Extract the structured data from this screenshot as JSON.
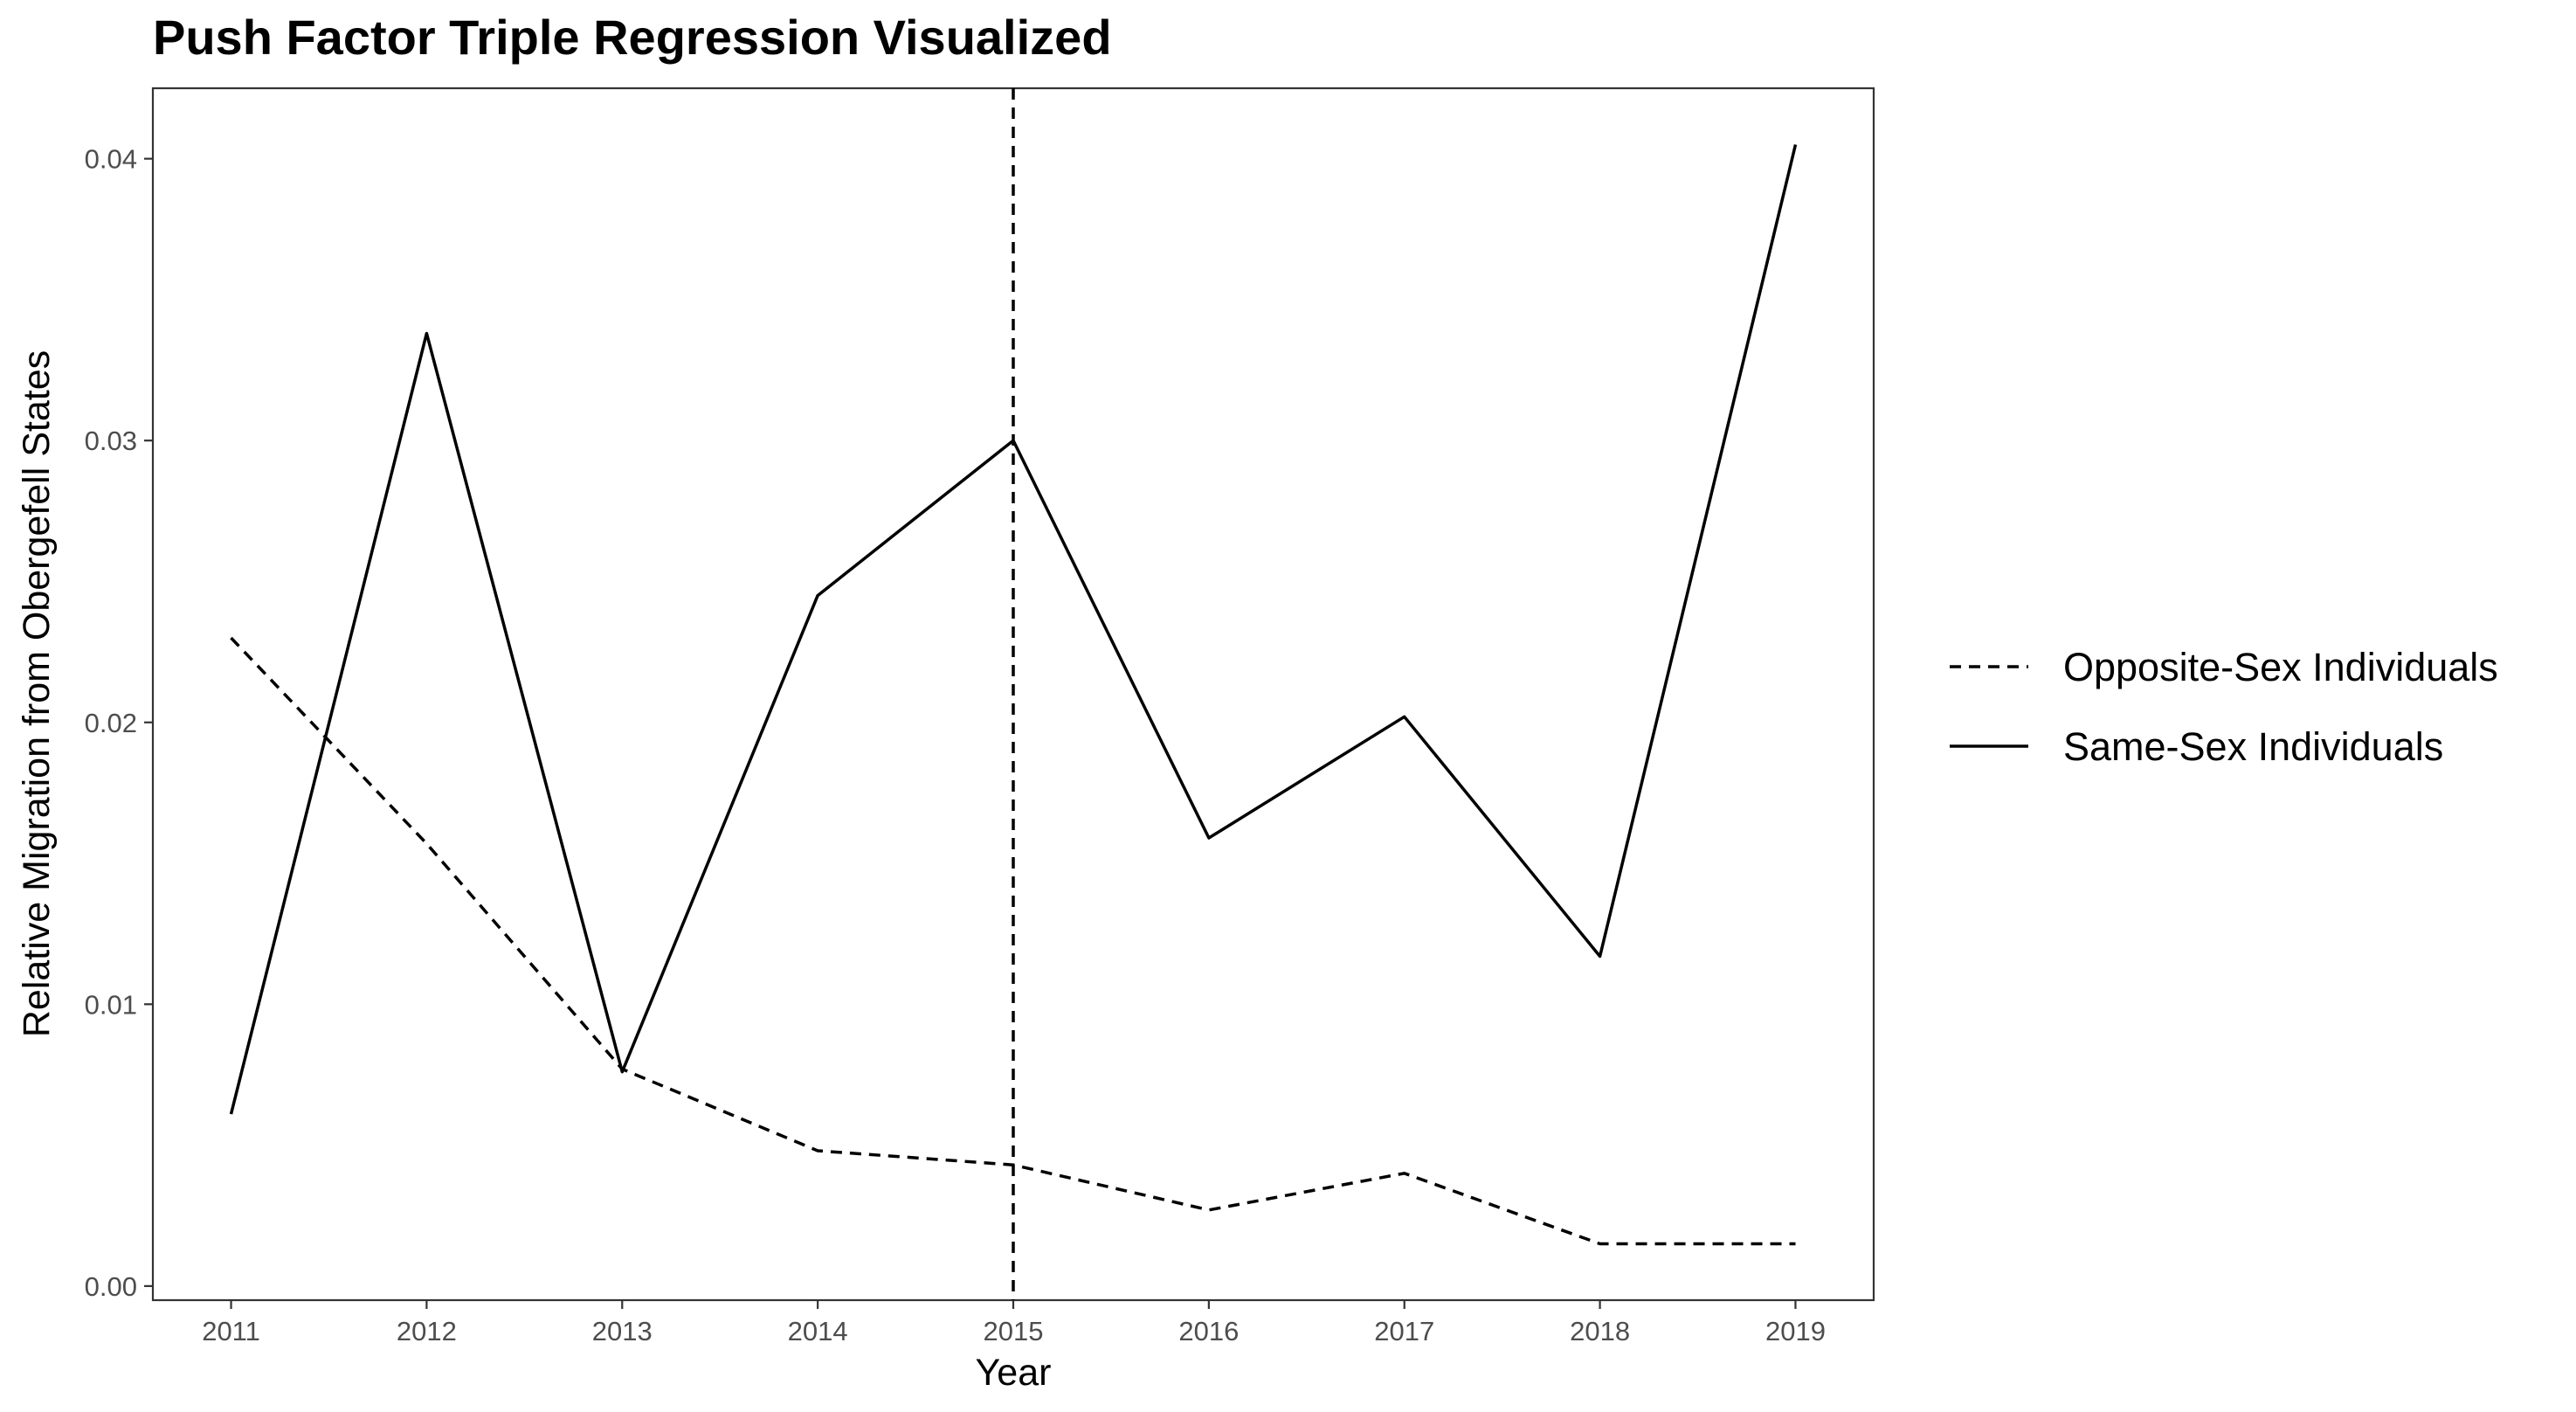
{
  "chart_data": {
    "type": "line",
    "title": "Push Factor Triple Regression Visualized",
    "xlabel": "Year",
    "ylabel": "Relative Migration from Obergefell States",
    "x": [
      2011,
      2012,
      2013,
      2014,
      2015,
      2016,
      2017,
      2018,
      2019
    ],
    "xlim": [
      2010.6,
      2019.4
    ],
    "ylim": [
      -0.0005,
      0.0425
    ],
    "y_ticks": [
      0.0,
      0.01,
      0.02,
      0.03,
      0.04
    ],
    "y_tick_labels": [
      "0.00",
      "0.01",
      "0.02",
      "0.03",
      "0.04"
    ],
    "x_tick_labels": [
      "2011",
      "2012",
      "2013",
      "2014",
      "2015",
      "2016",
      "2017",
      "2018",
      "2019"
    ],
    "grid": false,
    "legend_position": "right",
    "reference_line": {
      "axis": "x",
      "value": 2015,
      "style": "dashed"
    },
    "series": [
      {
        "name": "Opposite-Sex Individuals",
        "linestyle": "dashed",
        "color": "#000000",
        "values": [
          0.023,
          0.0157,
          0.0077,
          0.0048,
          0.0043,
          0.0027,
          0.004,
          0.0015,
          0.0015
        ]
      },
      {
        "name": "Same-Sex Individuals",
        "linestyle": "solid",
        "color": "#000000",
        "values": [
          0.0061,
          0.0338,
          0.0076,
          0.0245,
          0.03,
          0.0159,
          0.0202,
          0.0117,
          0.0405
        ]
      }
    ]
  }
}
